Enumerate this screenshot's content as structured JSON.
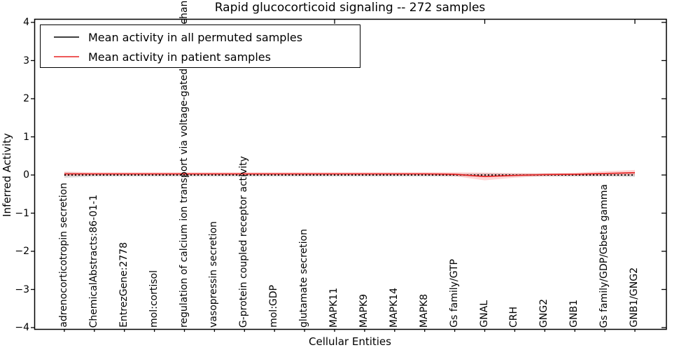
{
  "title": "Rapid glucocorticoid signaling -- 272 samples",
  "axes": {
    "ylabel": "Inferred Activity",
    "xlabel": "Cellular Entities",
    "yticks": [
      4,
      3,
      2,
      1,
      0,
      -1,
      -2,
      -3,
      -4
    ],
    "ylim": [
      -4,
      4
    ]
  },
  "legend": {
    "items": [
      {
        "label": "Mean activity in all permuted samples",
        "color": "#000000"
      },
      {
        "label": "Mean activity in patient samples",
        "color": "#e82222"
      }
    ]
  },
  "chart_data": {
    "type": "line",
    "title": "Rapid glucocorticoid signaling -- 272 samples",
    "xlabel": "Cellular Entities",
    "ylabel": "Inferred Activity",
    "ylim": [
      -4,
      4
    ],
    "grid": false,
    "legend_position": "upper left",
    "categories": [
      "adrenocorticotropin secretion",
      "ChemicalAbstracts:86-01-1",
      "EntrezGene:2778",
      "mol:cortisol",
      "regulation of calcium ion transport via voltage-gated calcium channels",
      "vasopressin secretion",
      "G-protein coupled receptor activity",
      "mol:GDP",
      "glutamate secretion",
      "MAPK11",
      "MAPK9",
      "MAPK14",
      "MAPK8",
      "Gs family/GTP",
      "GNAL",
      "CRH",
      "GNG2",
      "GNB1",
      "Gs family/GDP/Gbeta gamma",
      "GNB1/GNG2"
    ],
    "series": [
      {
        "name": "Mean activity in all permuted samples",
        "color": "#000000",
        "style": "dotted",
        "values": [
          0.0,
          0.0,
          0.0,
          0.0,
          0.0,
          0.0,
          0.0,
          0.0,
          0.0,
          0.0,
          0.0,
          0.0,
          0.0,
          0.0,
          0.0,
          0.0,
          0.0,
          0.0,
          0.0,
          0.0
        ],
        "band_halfwidth": [
          0.07,
          0.04,
          0.04,
          0.04,
          0.04,
          0.04,
          0.04,
          0.04,
          0.04,
          0.04,
          0.04,
          0.04,
          0.04,
          0.04,
          0.05,
          0.04,
          0.04,
          0.04,
          0.04,
          0.05
        ]
      },
      {
        "name": "Mean activity in patient samples",
        "color": "#e82222",
        "style": "solid",
        "values": [
          0.03,
          0.03,
          0.03,
          0.03,
          0.03,
          0.03,
          0.03,
          0.03,
          0.03,
          0.03,
          0.03,
          0.03,
          0.03,
          0.02,
          -0.04,
          -0.01,
          0.01,
          0.02,
          0.04,
          0.06
        ],
        "band_halfwidth": [
          0.06,
          0.04,
          0.04,
          0.04,
          0.04,
          0.04,
          0.04,
          0.04,
          0.04,
          0.04,
          0.04,
          0.04,
          0.04,
          0.05,
          0.1,
          0.06,
          0.04,
          0.04,
          0.06,
          0.07
        ]
      }
    ]
  }
}
